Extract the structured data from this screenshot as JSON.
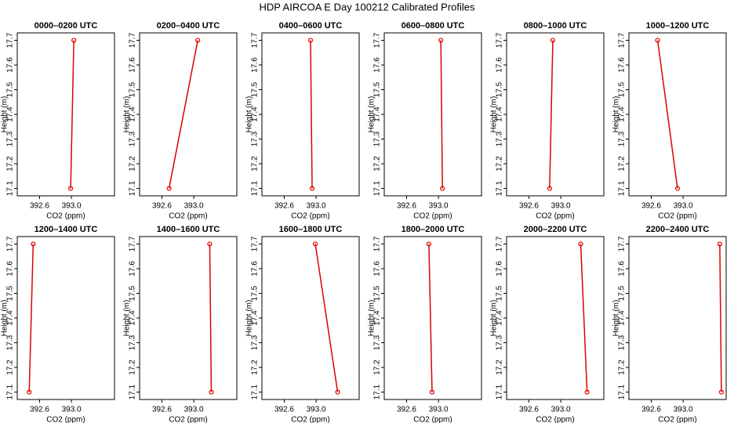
{
  "title": "HDP AIRCOA E  Day 100212  Calibrated Profiles",
  "chart_data": [
    {
      "type": "line",
      "title": "0000–0200 UTC",
      "x_label": "CO2 (ppm)",
      "y_label": "Height (m)",
      "xlim": [
        392.32,
        393.54
      ],
      "ylim": [
        17.07,
        17.73
      ],
      "xticks": [
        392.6,
        {
          "value": 393,
          "label": "393.0"
        }
      ],
      "yticks": [
        17.1,
        17.2,
        17.3,
        17.4,
        17.5,
        17.6,
        17.7
      ],
      "series": [
        {
          "color": "#e00000",
          "x": [
            392.99,
            393.03
          ],
          "values": [
            17.1,
            17.7
          ]
        }
      ]
    },
    {
      "type": "line",
      "title": "0200–0400 UTC",
      "x_label": "CO2 (ppm)",
      "y_label": "Height (m)",
      "xlim": [
        392.32,
        393.54
      ],
      "ylim": [
        17.07,
        17.73
      ],
      "xticks": [
        392.6,
        {
          "value": 393,
          "label": "393.0"
        }
      ],
      "yticks": [
        17.1,
        17.2,
        17.3,
        17.4,
        17.5,
        17.6,
        17.7
      ],
      "series": [
        {
          "color": "#e00000",
          "x": [
            392.69,
            393.05
          ],
          "values": [
            17.1,
            17.7
          ]
        }
      ]
    },
    {
      "type": "line",
      "title": "0400–0600 UTC",
      "x_label": "CO2 (ppm)",
      "y_label": "Height (m)",
      "xlim": [
        392.32,
        393.54
      ],
      "ylim": [
        17.07,
        17.73
      ],
      "xticks": [
        392.6,
        {
          "value": 393,
          "label": "393.0"
        }
      ],
      "yticks": [
        17.1,
        17.2,
        17.3,
        17.4,
        17.5,
        17.6,
        17.7
      ],
      "series": [
        {
          "color": "#e00000",
          "x": [
            392.95,
            392.93
          ],
          "values": [
            17.1,
            17.7
          ]
        }
      ]
    },
    {
      "type": "line",
      "title": "0600–0800 UTC",
      "x_label": "CO2 (ppm)",
      "y_label": "Height (m)",
      "xlim": [
        392.32,
        393.54
      ],
      "ylim": [
        17.07,
        17.73
      ],
      "xticks": [
        392.6,
        {
          "value": 393,
          "label": "393.0"
        }
      ],
      "yticks": [
        17.1,
        17.2,
        17.3,
        17.4,
        17.5,
        17.6,
        17.7
      ],
      "series": [
        {
          "color": "#e00000",
          "x": [
            393.05,
            393.03
          ],
          "values": [
            17.1,
            17.7
          ]
        }
      ]
    },
    {
      "type": "line",
      "title": "0800–1000 UTC",
      "x_label": "CO2 (ppm)",
      "y_label": "Height (m)",
      "xlim": [
        392.32,
        393.54
      ],
      "ylim": [
        17.07,
        17.73
      ],
      "xticks": [
        392.6,
        {
          "value": 393,
          "label": "393.0"
        }
      ],
      "yticks": [
        17.1,
        17.2,
        17.3,
        17.4,
        17.5,
        17.6,
        17.7
      ],
      "series": [
        {
          "color": "#e00000",
          "x": [
            392.86,
            392.9
          ],
          "values": [
            17.1,
            17.7
          ]
        }
      ]
    },
    {
      "type": "line",
      "title": "1000–1200 UTC",
      "x_label": "CO2 (ppm)",
      "y_label": "Height (m)",
      "xlim": [
        392.32,
        393.54
      ],
      "ylim": [
        17.07,
        17.73
      ],
      "xticks": [
        392.6,
        {
          "value": 393,
          "label": "393.0"
        }
      ],
      "yticks": [
        17.1,
        17.2,
        17.3,
        17.4,
        17.5,
        17.6,
        17.7
      ],
      "series": [
        {
          "color": "#e00000",
          "x": [
            392.93,
            392.68
          ],
          "values": [
            17.1,
            17.7
          ]
        }
      ]
    },
    {
      "type": "line",
      "title": "1200–1400 UTC",
      "x_label": "CO2 (ppm)",
      "y_label": "Height (m)",
      "xlim": [
        392.32,
        393.54
      ],
      "ylim": [
        17.07,
        17.73
      ],
      "xticks": [
        392.6,
        {
          "value": 393,
          "label": "393.0"
        }
      ],
      "yticks": [
        17.1,
        17.2,
        17.3,
        17.4,
        17.5,
        17.6,
        17.7
      ],
      "series": [
        {
          "color": "#e00000",
          "x": [
            392.47,
            392.52
          ],
          "values": [
            17.1,
            17.7
          ]
        }
      ]
    },
    {
      "type": "line",
      "title": "1400–1600 UTC",
      "x_label": "CO2 (ppm)",
      "y_label": "Height (m)",
      "xlim": [
        392.32,
        393.54
      ],
      "ylim": [
        17.07,
        17.73
      ],
      "xticks": [
        392.6,
        {
          "value": 393,
          "label": "393.0"
        }
      ],
      "yticks": [
        17.1,
        17.2,
        17.3,
        17.4,
        17.5,
        17.6,
        17.7
      ],
      "series": [
        {
          "color": "#e00000",
          "x": [
            393.22,
            393.2
          ],
          "values": [
            17.1,
            17.7
          ]
        }
      ]
    },
    {
      "type": "line",
      "title": "1600–1800 UTC",
      "x_label": "CO2 (ppm)",
      "y_label": "Height (m)",
      "xlim": [
        392.32,
        393.54
      ],
      "ylim": [
        17.07,
        17.73
      ],
      "xticks": [
        392.6,
        {
          "value": 393,
          "label": "393.0"
        }
      ],
      "yticks": [
        17.1,
        17.2,
        17.3,
        17.4,
        17.5,
        17.6,
        17.7
      ],
      "series": [
        {
          "color": "#e00000",
          "x": [
            393.27,
            392.99
          ],
          "values": [
            17.1,
            17.7
          ]
        }
      ]
    },
    {
      "type": "line",
      "title": "1800–2000 UTC",
      "x_label": "CO2 (ppm)",
      "y_label": "Height (m)",
      "xlim": [
        392.32,
        393.54
      ],
      "ylim": [
        17.07,
        17.73
      ],
      "xticks": [
        392.6,
        {
          "value": 393,
          "label": "393.0"
        }
      ],
      "yticks": [
        17.1,
        17.2,
        17.3,
        17.4,
        17.5,
        17.6,
        17.7
      ],
      "series": [
        {
          "color": "#e00000",
          "x": [
            392.92,
            392.88
          ],
          "values": [
            17.1,
            17.7
          ]
        }
      ]
    },
    {
      "type": "line",
      "title": "2000–2200 UTC",
      "x_label": "CO2 (ppm)",
      "y_label": "Height (m)",
      "xlim": [
        392.32,
        393.54
      ],
      "ylim": [
        17.07,
        17.73
      ],
      "xticks": [
        392.6,
        {
          "value": 393,
          "label": "393.0"
        }
      ],
      "yticks": [
        17.1,
        17.2,
        17.3,
        17.4,
        17.5,
        17.6,
        17.7
      ],
      "series": [
        {
          "color": "#e00000",
          "x": [
            393.33,
            393.25
          ],
          "values": [
            17.1,
            17.7
          ]
        }
      ]
    },
    {
      "type": "line",
      "title": "2200–2400 UTC",
      "x_label": "CO2 (ppm)",
      "y_label": "Height (m)",
      "xlim": [
        392.32,
        393.54
      ],
      "ylim": [
        17.07,
        17.73
      ],
      "xticks": [
        392.6,
        {
          "value": 393,
          "label": "393.0"
        }
      ],
      "yticks": [
        17.1,
        17.2,
        17.3,
        17.4,
        17.5,
        17.6,
        17.7
      ],
      "series": [
        {
          "color": "#e00000",
          "x": [
            393.48,
            393.46
          ],
          "values": [
            17.1,
            17.7
          ]
        }
      ]
    }
  ]
}
